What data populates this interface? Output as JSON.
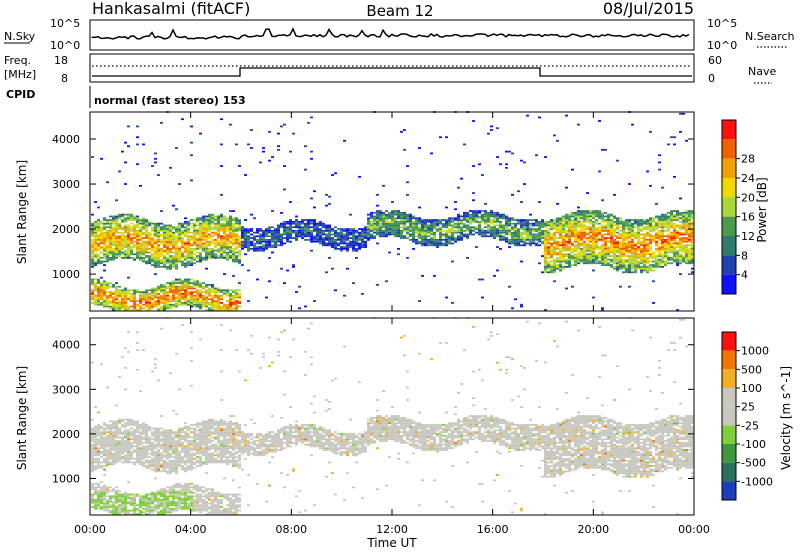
{
  "header": {
    "station": "Hankasalmi (fitACF)",
    "beam": "Beam 12",
    "date": "08/Jul/2015"
  },
  "strip_labels": {
    "nsky": "N.Sky",
    "nsky_ticks": [
      "10^5",
      "10^0"
    ],
    "nsearch": "N.Search",
    "nsearch_ticks": [
      "10^5",
      "10^0"
    ],
    "freq": "Freq.",
    "freq_unit": "[MHz]",
    "freq_ticks": [
      "18",
      "8"
    ],
    "nave": "Nave",
    "nave_ticks": [
      "60",
      "0"
    ],
    "cpid": "CPID",
    "cpid_value": "normal (fast stereo) 153"
  },
  "chart_data": [
    {
      "type": "heatmap",
      "panel": "power",
      "ylabel": "Slant Range [km]",
      "xlabel": "Time UT",
      "x_ticks": [
        "00:00",
        "04:00",
        "08:00",
        "12:00",
        "16:00",
        "20:00",
        "00:00"
      ],
      "xlim_hours": [
        0,
        24
      ],
      "y_ticks": [
        1000,
        2000,
        3000,
        4000
      ],
      "ylim": [
        180,
        4600
      ],
      "colorbar": {
        "label": "Power [dB]",
        "ticks": [
          "4",
          "8",
          "12",
          "16",
          "20",
          "24",
          "28"
        ],
        "colors": [
          "#1010ff",
          "#2040b0",
          "#2e7d6a",
          "#4c9a50",
          "#a8d838",
          "#f0d800",
          "#f0a000",
          "#f06000",
          "#ff1010"
        ]
      },
      "echo_bands": [
        {
          "t0": 0,
          "t1": 6,
          "center_km": 1700,
          "width_km": 500,
          "strength": 0.75
        },
        {
          "t0": 0,
          "t1": 6,
          "center_km": 450,
          "width_km": 300,
          "strength": 0.85
        },
        {
          "t0": 6,
          "t1": 11,
          "center_km": 1850,
          "width_km": 250,
          "strength": 0.25
        },
        {
          "t0": 11,
          "t1": 18,
          "center_km": 2000,
          "width_km": 300,
          "strength": 0.45
        },
        {
          "t0": 18,
          "t1": 24,
          "center_km": 1700,
          "width_km": 600,
          "strength": 0.8
        }
      ]
    },
    {
      "type": "heatmap",
      "panel": "velocity",
      "ylabel": "Slant Range [km]",
      "xlabel": "Time UT",
      "x_ticks": [
        "00:00",
        "04:00",
        "08:00",
        "12:00",
        "16:00",
        "20:00",
        "00:00"
      ],
      "xlim_hours": [
        0,
        24
      ],
      "y_ticks": [
        1000,
        2000,
        3000,
        4000
      ],
      "ylim": [
        180,
        4600
      ],
      "colorbar": {
        "label": "Velocity [m s^-1]",
        "ticks": [
          "1000",
          "500",
          "100",
          "25",
          "-25",
          "-100",
          "-500",
          "-1000"
        ],
        "colors": [
          "#1a3fb8",
          "#2c6e5e",
          "#3c9a3c",
          "#7ecf3a",
          "#c8c8c0",
          "#c8c8c0",
          "#f0b020",
          "#f07800",
          "#ff1010"
        ]
      }
    }
  ]
}
